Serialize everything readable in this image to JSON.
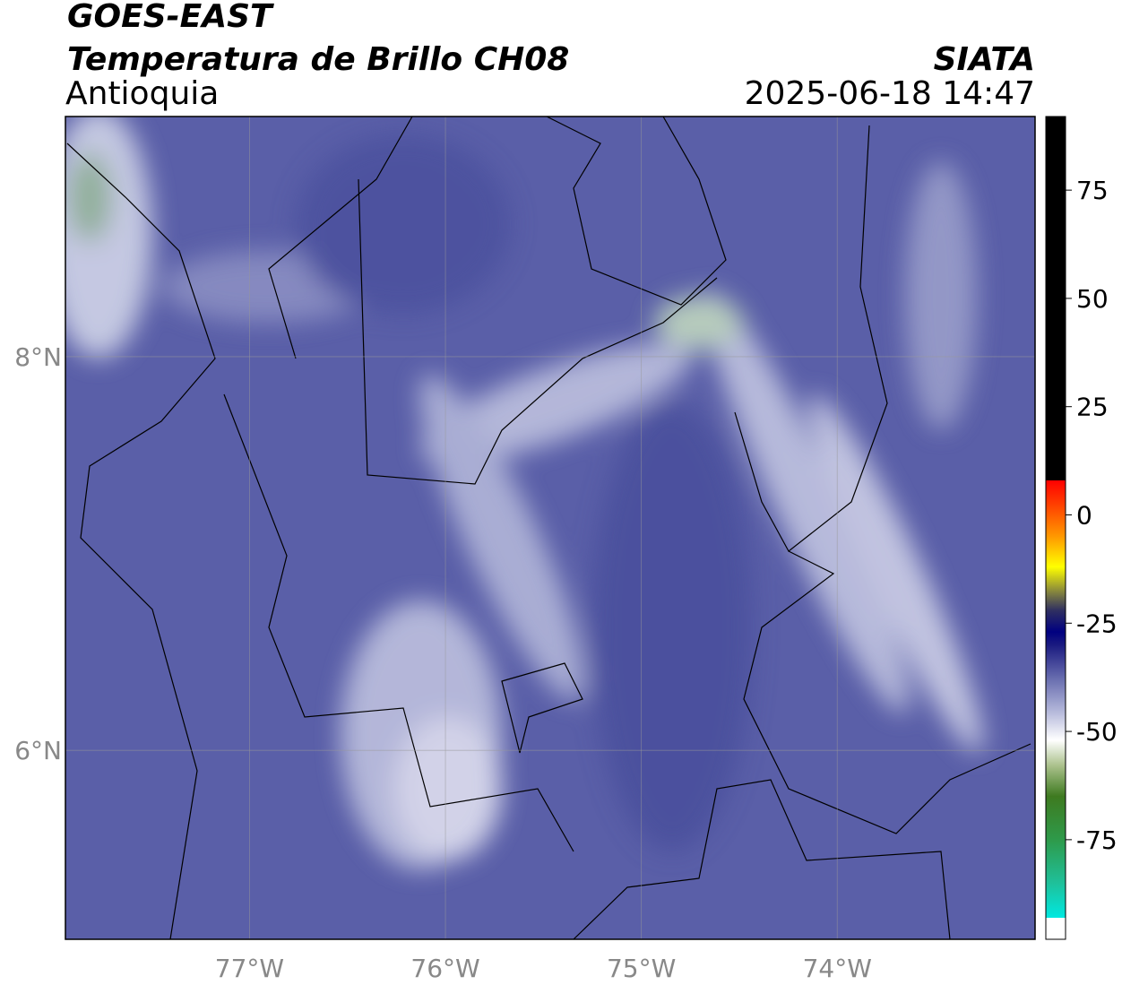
{
  "header": {
    "title": "GOES-EAST",
    "subtitle": "Temperatura de Brillo CH08",
    "source": "SIATA",
    "region": "Antioquia",
    "datetime": "2025-06-18 14:47"
  },
  "map": {
    "xlim": [
      -77.94,
      -72.99
    ],
    "ylim": [
      5.04,
      9.22
    ],
    "xticks": [
      {
        "value": -77,
        "label": "77°W"
      },
      {
        "value": -76,
        "label": "76°W"
      },
      {
        "value": -75,
        "label": "75°W"
      },
      {
        "value": -74,
        "label": "74°W"
      }
    ],
    "yticks": [
      {
        "value": 8,
        "label": "8°N"
      },
      {
        "value": 6,
        "label": "6°N"
      }
    ],
    "grid": true
  },
  "colorbar": {
    "lim": [
      -98,
      92
    ],
    "ticks": [
      75,
      50,
      25,
      0,
      -25,
      -50,
      -75
    ],
    "stops": [
      {
        "value": -98,
        "color": "#ffffff"
      },
      {
        "value": -93,
        "color": "#ffffff"
      },
      {
        "value": -93,
        "color": "#00e8e0"
      },
      {
        "value": -85,
        "color": "#1fc09a"
      },
      {
        "value": -75,
        "color": "#2e9a4a"
      },
      {
        "value": -65,
        "color": "#3e7a20"
      },
      {
        "value": -58,
        "color": "#a9c08a"
      },
      {
        "value": -52,
        "color": "#ffffff"
      },
      {
        "value": -45,
        "color": "#b0b4d8"
      },
      {
        "value": -38,
        "color": "#6a6fb0"
      },
      {
        "value": -30,
        "color": "#1a1a80"
      },
      {
        "value": -27,
        "color": "#000080"
      },
      {
        "value": -22,
        "color": "#303060"
      },
      {
        "value": -18,
        "color": "#808040"
      },
      {
        "value": -12,
        "color": "#ffff00"
      },
      {
        "value": -5,
        "color": "#ff9900"
      },
      {
        "value": 2,
        "color": "#ff4400"
      },
      {
        "value": 8,
        "color": "#ff0000"
      },
      {
        "value": 8,
        "color": "#000000"
      },
      {
        "value": 92,
        "color": "#000000"
      }
    ]
  }
}
